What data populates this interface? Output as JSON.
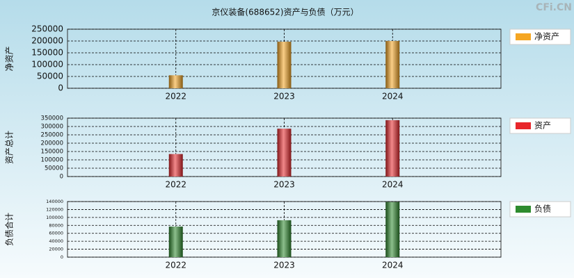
{
  "title": "京仪装备(688652)资产与负债（万元）",
  "watermark": "CFi.CN",
  "chart_data": [
    {
      "type": "bar",
      "ylabel": "净资产",
      "categories": [
        "2022",
        "2023",
        "2024"
      ],
      "series": [
        {
          "name": "净资产",
          "color": "#f5a623",
          "values": [
            55000,
            197000,
            200000
          ]
        }
      ],
      "ylim": [
        0,
        250000
      ],
      "yticks": [
        0,
        50000,
        100000,
        150000,
        200000,
        250000
      ],
      "grid": true
    },
    {
      "type": "bar",
      "ylabel": "资产总计",
      "categories": [
        "2022",
        "2023",
        "2024"
      ],
      "series": [
        {
          "name": "资产",
          "color": "#e8262b",
          "values": [
            135000,
            287000,
            338000
          ]
        }
      ],
      "ylim": [
        0,
        350000
      ],
      "yticks": [
        0,
        50000,
        100000,
        150000,
        200000,
        250000,
        300000,
        350000
      ],
      "grid": true
    },
    {
      "type": "bar",
      "ylabel": "负债合计",
      "categories": [
        "2022",
        "2023",
        "2024"
      ],
      "series": [
        {
          "name": "负债",
          "color": "#2e8b2e",
          "values": [
            77000,
            93000,
            139000
          ]
        }
      ],
      "ylim": [
        0,
        140000
      ],
      "yticks": [
        0,
        20000,
        40000,
        60000,
        80000,
        100000,
        120000,
        140000
      ],
      "grid": true
    }
  ]
}
